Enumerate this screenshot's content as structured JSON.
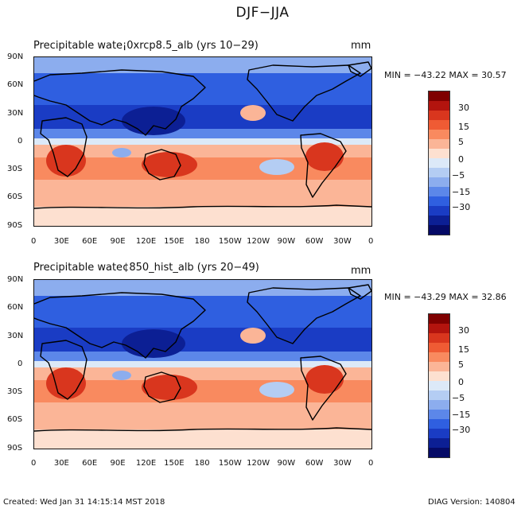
{
  "title": "DJF−JJA",
  "panels": [
    {
      "name": "top",
      "title": "Precipitable wate¡0xrcp8.5_alb (yrs 10−29)",
      "units": "mm",
      "minmax": "MIN = −43.22  MAX =   30.57"
    },
    {
      "name": "bottom",
      "title": "Precipitable wate¢850_hist_alb (yrs 20−49)",
      "units": "mm",
      "minmax": "MIN = −43.29  MAX =   32.86"
    }
  ],
  "lat_labels": [
    "90N",
    "60N",
    "30N",
    "0",
    "30S",
    "60S",
    "90S"
  ],
  "lon_labels": [
    "0",
    "30E",
    "60E",
    "90E",
    "120E",
    "150E",
    "180",
    "150W",
    "120W",
    "90W",
    "60W",
    "30W",
    "0"
  ],
  "colorbar": {
    "labels": [
      "30",
      "15",
      "5",
      "0",
      "−5",
      "−15",
      "−30"
    ],
    "colors": [
      "#7f0000",
      "#b3140e",
      "#d9361e",
      "#ef5b34",
      "#f98a5f",
      "#fbb597",
      "#fde0d0",
      "#dce9f8",
      "#b4cdf3",
      "#8cadee",
      "#5c87e9",
      "#2f5fe0",
      "#1a3cc4",
      "#0c1f94",
      "#050a66"
    ]
  },
  "footer": {
    "created": "Created: Wed Jan 31 14:15:14 MST 2018",
    "version": "DIAG Version: 140804"
  }
}
